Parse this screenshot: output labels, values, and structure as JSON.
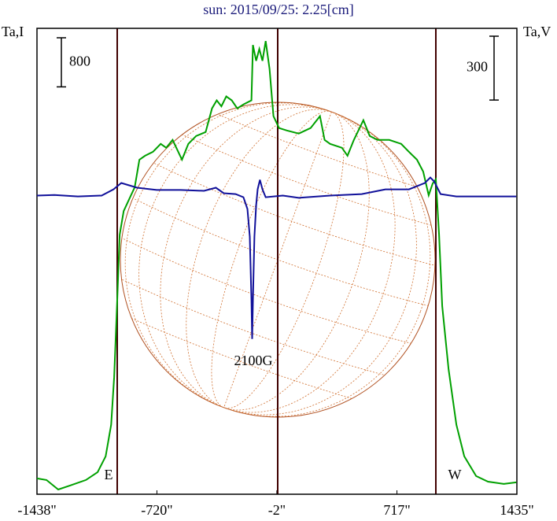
{
  "chart_data": {
    "type": "line",
    "title": "sun: 2015/09/25: 2.25[cm]",
    "ylabel": "Ta,I",
    "y2label": "Ta,V",
    "xlim": [
      -1438,
      1435
    ],
    "xticks": [
      {
        "value": -1438,
        "label": "-1438\""
      },
      {
        "value": -720,
        "label": "-720\""
      },
      {
        "value": -2,
        "label": "-2\""
      },
      {
        "value": 717,
        "label": "717\""
      },
      {
        "value": 1435,
        "label": "1435\""
      }
    ],
    "ylim": [
      -200,
      7400
    ],
    "y2lim": [
      -1400,
      790
    ],
    "scale_bars": [
      {
        "value": 800,
        "axis": "y"
      },
      {
        "value": 300,
        "axis": "y2"
      }
    ],
    "annotations": [
      "E",
      "W",
      "2100G"
    ],
    "series": [
      {
        "color": "#00a000",
        "axis": "y",
        "x": [
          -1438,
          -1381,
          -1311,
          -1240,
          -1145,
          -1075,
          -1027,
          -994,
          -976,
          -957,
          -943,
          -919,
          -886,
          -853,
          -825,
          -791,
          -744,
          -697,
          -664,
          -626,
          -570,
          -532,
          -485,
          -428,
          -390,
          -362,
          -334,
          -305,
          -272,
          -239,
          -201,
          -154,
          -145,
          -126,
          -107,
          -88,
          -69,
          -46,
          -22,
          11,
          58,
          129,
          200,
          256,
          284,
          317,
          388,
          421,
          459,
          516,
          554,
          601,
          671,
          742,
          789,
          837,
          874,
          907,
          931,
          950,
          969,
          988,
          1026,
          1073,
          1120,
          1191,
          1262,
          1357,
          1431
        ],
        "values": [
          58,
          32,
          -123,
          -58,
          32,
          161,
          419,
          935,
          1710,
          3000,
          4032,
          4419,
          4613,
          4806,
          5257,
          5321,
          5386,
          5515,
          5451,
          5579,
          5257,
          5515,
          5644,
          5708,
          6095,
          6225,
          6128,
          6289,
          6225,
          6095,
          6160,
          6225,
          7128,
          6870,
          7063,
          6870,
          7192,
          6741,
          5967,
          5773,
          5734,
          5683,
          5773,
          5967,
          5579,
          5515,
          5451,
          5321,
          5579,
          5902,
          5644,
          5579,
          5579,
          5515,
          5386,
          5257,
          5063,
          4677,
          4870,
          4935,
          4032,
          2870,
          1838,
          935,
          419,
          97,
          6,
          -32,
          -6
        ]
      },
      {
        "color": "#10109a",
        "axis": "y2",
        "x": [
          -1438,
          -1334,
          -1193,
          -1051,
          -980,
          -933,
          -886,
          -839,
          -721,
          -579,
          -438,
          -367,
          -320,
          -249,
          -202,
          -178,
          -164,
          -154,
          -150,
          -145,
          -136,
          -126,
          -117,
          -103,
          -88,
          -69,
          34,
          129,
          317,
          506,
          648,
          789,
          884,
          917,
          940,
          978,
          1073,
          1262,
          1431
        ],
        "values": [
          4,
          7,
          0,
          4,
          33,
          63,
          52,
          41,
          30,
          30,
          26,
          41,
          15,
          11,
          -4,
          -59,
          -189,
          -485,
          -670,
          -485,
          -189,
          -41,
          33,
          78,
          33,
          -4,
          4,
          -7,
          4,
          11,
          33,
          33,
          63,
          89,
          70,
          11,
          0,
          0,
          0
        ]
      }
    ]
  }
}
